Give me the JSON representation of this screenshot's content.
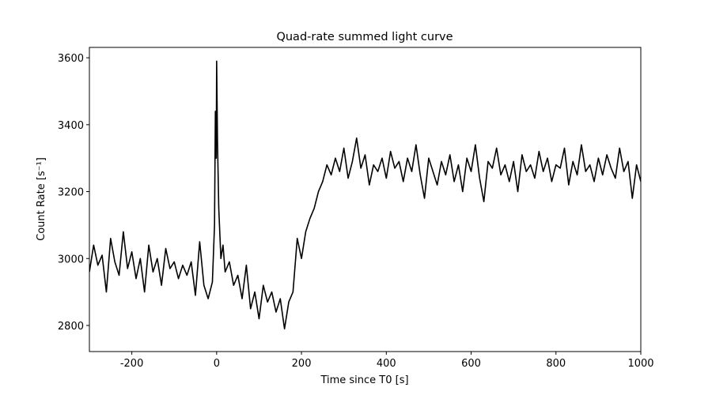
{
  "chart_data": {
    "type": "line",
    "title": "Quad-rate summed light curve",
    "xlabel": "Time since T0 [s]",
    "ylabel": "Count Rate [s⁻¹]",
    "xlim": [
      -300,
      1000
    ],
    "ylim": [
      2722,
      3631
    ],
    "xticks": [
      -200,
      0,
      200,
      400,
      600,
      800,
      1000
    ],
    "yticks": [
      2800,
      3000,
      3200,
      3400,
      3600
    ],
    "series": [
      {
        "color": "#000000",
        "x": [
          -300,
          -290,
          -280,
          -270,
          -260,
          -250,
          -240,
          -230,
          -220,
          -210,
          -200,
          -190,
          -180,
          -170,
          -160,
          -150,
          -140,
          -130,
          -120,
          -110,
          -100,
          -90,
          -80,
          -70,
          -60,
          -50,
          -40,
          -30,
          -20,
          -10,
          -5,
          -3,
          -1,
          0,
          2,
          5,
          10,
          15,
          20,
          30,
          40,
          50,
          60,
          70,
          80,
          90,
          100,
          110,
          120,
          130,
          140,
          150,
          160,
          170,
          180,
          190,
          200,
          210,
          220,
          230,
          240,
          250,
          260,
          270,
          280,
          290,
          300,
          310,
          320,
          330,
          340,
          350,
          360,
          370,
          380,
          390,
          400,
          410,
          420,
          430,
          440,
          450,
          460,
          470,
          480,
          490,
          500,
          510,
          520,
          530,
          540,
          550,
          560,
          570,
          580,
          590,
          600,
          610,
          620,
          630,
          640,
          650,
          660,
          670,
          680,
          690,
          700,
          710,
          720,
          730,
          740,
          750,
          760,
          770,
          780,
          790,
          800,
          810,
          820,
          830,
          840,
          850,
          860,
          870,
          880,
          890,
          900,
          910,
          920,
          930,
          940,
          950,
          960,
          970,
          980,
          990,
          1000
        ],
        "values": [
          2960,
          3040,
          2980,
          3010,
          2900,
          3060,
          2990,
          2950,
          3080,
          2970,
          3020,
          2940,
          3000,
          2900,
          3040,
          2960,
          3000,
          2920,
          3030,
          2970,
          2990,
          2940,
          2980,
          2950,
          2990,
          2890,
          3050,
          2920,
          2880,
          2930,
          3100,
          3440,
          3300,
          3590,
          3350,
          3150,
          3000,
          3040,
          2960,
          2990,
          2920,
          2950,
          2880,
          2980,
          2850,
          2900,
          2820,
          2920,
          2870,
          2900,
          2840,
          2880,
          2790,
          2870,
          2900,
          3060,
          3000,
          3080,
          3120,
          3150,
          3200,
          3230,
          3280,
          3250,
          3300,
          3260,
          3330,
          3240,
          3290,
          3360,
          3270,
          3310,
          3220,
          3280,
          3260,
          3300,
          3240,
          3320,
          3270,
          3290,
          3230,
          3300,
          3260,
          3340,
          3250,
          3180,
          3300,
          3260,
          3220,
          3290,
          3250,
          3310,
          3230,
          3280,
          3200,
          3300,
          3260,
          3340,
          3240,
          3170,
          3290,
          3270,
          3330,
          3250,
          3280,
          3230,
          3290,
          3200,
          3310,
          3260,
          3280,
          3240,
          3320,
          3260,
          3300,
          3230,
          3280,
          3270,
          3330,
          3220,
          3290,
          3250,
          3340,
          3260,
          3280,
          3230,
          3300,
          3250,
          3310,
          3270,
          3240,
          3330,
          3260,
          3290,
          3180,
          3280,
          3230
        ]
      }
    ]
  }
}
